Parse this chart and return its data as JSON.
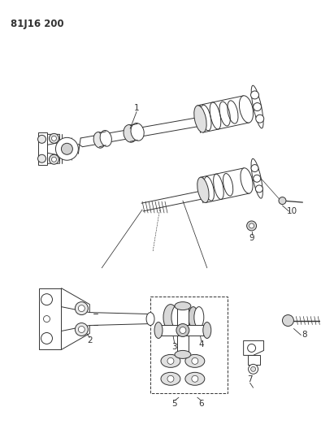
{
  "title": "81J16 200",
  "bg_color": "#ffffff",
  "lc": "#333333",
  "lw": 0.7,
  "fig_w": 3.95,
  "fig_h": 5.33,
  "dpi": 100
}
